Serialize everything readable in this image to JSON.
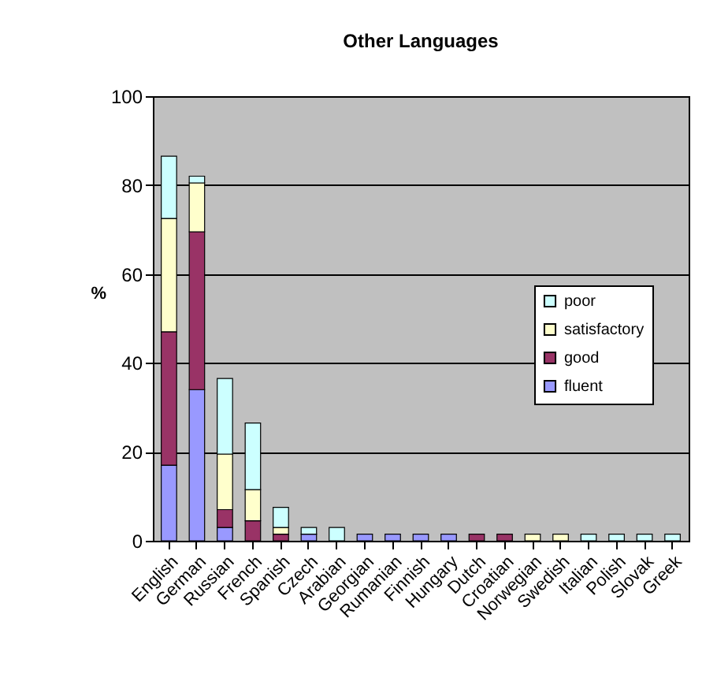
{
  "chart_data": {
    "type": "bar",
    "title": "Other Languages",
    "ylabel": "%",
    "categories": [
      "English",
      "German",
      "Russian",
      "French",
      "Spanish",
      "Czech",
      "Arabian",
      "Georgian",
      "Rumanian",
      "Finnish",
      "Hungary",
      "Dutch",
      "Croatian",
      "Norwegian",
      "Swedish",
      "Italian",
      "Polish",
      "Slovak",
      "Greek"
    ],
    "stacked": true,
    "series": [
      {
        "name": "fluent",
        "color": "#9999ff",
        "values": [
          17,
          34,
          3,
          null,
          null,
          1.5,
          null,
          1.5,
          1.5,
          1.5,
          1.5,
          null,
          null,
          null,
          null,
          null,
          null,
          null,
          null
        ]
      },
      {
        "name": "good",
        "color": "#993366",
        "values": [
          30,
          35.5,
          4,
          4.5,
          1.5,
          null,
          null,
          null,
          null,
          null,
          null,
          1.5,
          1.5,
          null,
          null,
          null,
          null,
          null,
          null
        ]
      },
      {
        "name": "satisfactory",
        "color": "#ffffcc",
        "values": [
          25.5,
          11,
          12.5,
          7,
          1.5,
          null,
          null,
          null,
          null,
          null,
          null,
          null,
          null,
          1.5,
          1.5,
          null,
          null,
          null,
          null
        ]
      },
      {
        "name": "poor",
        "color": "#ccffff",
        "values": [
          14,
          1.5,
          17,
          15,
          4.5,
          1.5,
          3,
          null,
          null,
          null,
          null,
          null,
          null,
          null,
          null,
          1.5,
          1.5,
          1.5,
          1.5
        ]
      }
    ],
    "ylim": [
      0,
      100
    ],
    "yticks": [
      0,
      20,
      40,
      60,
      80,
      100
    ],
    "grid": "y",
    "legend": "right"
  }
}
